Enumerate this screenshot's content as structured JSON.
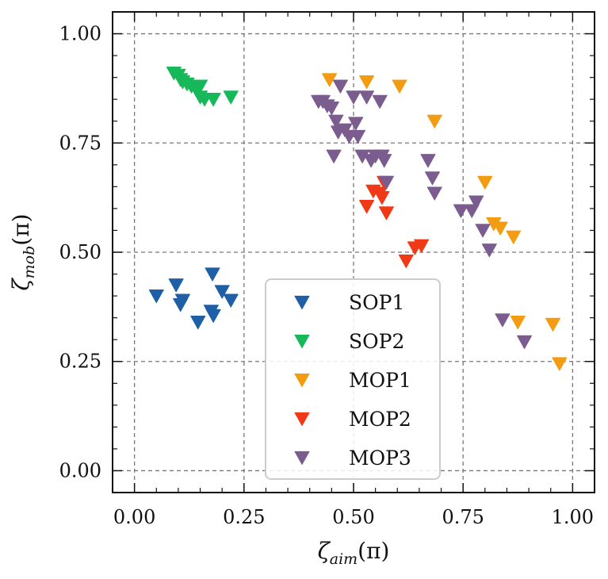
{
  "chart_data": {
    "type": "scatter",
    "xlabel": "ζ_aim(π)",
    "ylabel": "ζ_mob(π)",
    "xlabel_parts": {
      "main": "ζ",
      "sub": "aim",
      "unit": "(π)"
    },
    "ylabel_parts": {
      "main": "ζ",
      "sub": "mob",
      "unit": "(π)"
    },
    "xlim": [
      -0.05,
      1.05
    ],
    "ylim": [
      -0.05,
      1.05
    ],
    "xticks": [
      0.0,
      0.25,
      0.5,
      0.75,
      1.0
    ],
    "yticks": [
      0.0,
      0.25,
      0.5,
      0.75,
      1.0
    ],
    "xtick_labels": [
      "0.00",
      "0.25",
      "0.50",
      "0.75",
      "1.00"
    ],
    "ytick_labels": [
      "0.00",
      "0.25",
      "0.50",
      "0.75",
      "1.00"
    ],
    "grid": true,
    "legend_position": "lower-center",
    "marker": "triangle-down",
    "series": [
      {
        "name": "SOP1",
        "color": "#1f5fa6",
        "x": [
          0.05,
          0.095,
          0.105,
          0.11,
          0.145,
          0.175,
          0.178,
          0.18,
          0.2,
          0.22
        ],
        "y": [
          0.4,
          0.425,
          0.38,
          0.39,
          0.34,
          0.365,
          0.45,
          0.355,
          0.41,
          0.39
        ]
      },
      {
        "name": "SOP2",
        "color": "#17b85a",
        "x": [
          0.09,
          0.1,
          0.105,
          0.11,
          0.12,
          0.13,
          0.14,
          0.15,
          0.15,
          0.16,
          0.18,
          0.22
        ],
        "y": [
          0.91,
          0.905,
          0.895,
          0.89,
          0.885,
          0.88,
          0.875,
          0.88,
          0.855,
          0.85,
          0.85,
          0.855
        ]
      },
      {
        "name": "MOP1",
        "color": "#f39c12",
        "x": [
          0.445,
          0.53,
          0.605,
          0.685,
          0.8,
          0.82,
          0.835,
          0.865,
          0.875,
          0.955,
          0.97
        ],
        "y": [
          0.895,
          0.89,
          0.88,
          0.8,
          0.66,
          0.565,
          0.555,
          0.535,
          0.34,
          0.335,
          0.245
        ]
      },
      {
        "name": "MOP2",
        "color": "#f03a17",
        "x": [
          0.53,
          0.545,
          0.56,
          0.565,
          0.57,
          0.575,
          0.62,
          0.64,
          0.655
        ],
        "y": [
          0.605,
          0.64,
          0.635,
          0.625,
          0.66,
          0.59,
          0.48,
          0.51,
          0.515
        ]
      },
      {
        "name": "MOP3",
        "color": "#7b5c8f",
        "x": [
          0.42,
          0.43,
          0.44,
          0.45,
          0.455,
          0.46,
          0.465,
          0.47,
          0.48,
          0.49,
          0.5,
          0.505,
          0.51,
          0.52,
          0.53,
          0.54,
          0.55,
          0.56,
          0.565,
          0.57,
          0.575,
          0.67,
          0.68,
          0.685,
          0.745,
          0.77,
          0.78,
          0.795,
          0.81,
          0.84,
          0.89
        ],
        "y": [
          0.845,
          0.845,
          0.835,
          0.83,
          0.72,
          0.8,
          0.775,
          0.88,
          0.78,
          0.765,
          0.855,
          0.795,
          0.765,
          0.72,
          0.855,
          0.71,
          0.72,
          0.845,
          0.72,
          0.71,
          0.66,
          0.71,
          0.67,
          0.635,
          0.595,
          0.595,
          0.615,
          0.55,
          0.505,
          0.345,
          0.295
        ]
      }
    ]
  }
}
